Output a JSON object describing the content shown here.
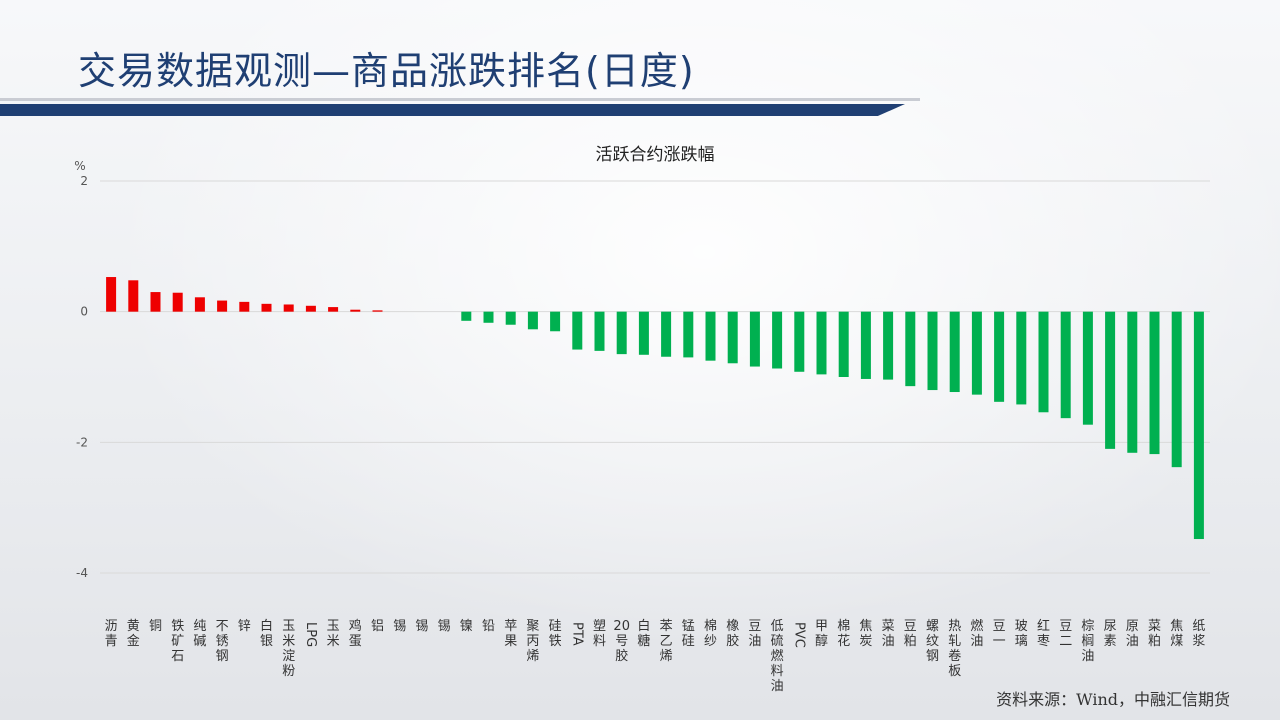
{
  "page": {
    "title": "交易数据观测—商品涨跌排名(日度)",
    "source": "资料来源：Wind，中融汇信期货",
    "colors": {
      "title": "#1f3f73",
      "positive": "#ee0000",
      "negative": "#00b050",
      "grid": "#d9d9d9"
    }
  },
  "chart_data": {
    "type": "bar",
    "title": "活跃合约涨跌幅",
    "ylabel": "%",
    "ylim": [
      -4,
      2
    ],
    "yticks": [
      2,
      0,
      -2,
      -4
    ],
    "grid": true,
    "categories": [
      "沥青",
      "黄金",
      "铜",
      "铁矿石",
      "纯碱",
      "不锈钢",
      "锌",
      "白银",
      "玉米淀粉",
      "LPG",
      "玉米",
      "鸡蛋",
      "铝",
      "锡",
      "锡",
      "锡",
      "镍",
      "铅",
      "苹果",
      "聚丙烯",
      "硅铁",
      "PTA",
      "塑料",
      "20号胶",
      "白糖",
      "苯乙烯",
      "锰硅",
      "棉纱",
      "橡胶",
      "豆油",
      "低硫燃料油",
      "PVC",
      "甲醇",
      "棉花",
      "焦炭",
      "菜油",
      "豆粕",
      "螺纹钢",
      "热轧卷板",
      "燃油",
      "豆一",
      "玻璃",
      "红枣",
      "豆二",
      "棕榈油",
      "尿素",
      "原油",
      "菜粕",
      "焦煤",
      "纸浆"
    ],
    "values": [
      0.53,
      0.48,
      0.3,
      0.29,
      0.22,
      0.17,
      0.15,
      0.12,
      0.11,
      0.09,
      0.07,
      0.03,
      0.02,
      0,
      0,
      0,
      -0.14,
      -0.17,
      -0.2,
      -0.27,
      -0.3,
      -0.58,
      -0.6,
      -0.65,
      -0.66,
      -0.69,
      -0.7,
      -0.75,
      -0.79,
      -0.84,
      -0.87,
      -0.92,
      -0.96,
      -1.0,
      -1.03,
      -1.04,
      -1.14,
      -1.2,
      -1.23,
      -1.27,
      -1.38,
      -1.42,
      -1.54,
      -1.63,
      -1.73,
      -2.1,
      -2.16,
      -2.18,
      -2.38,
      -3.48
    ]
  }
}
